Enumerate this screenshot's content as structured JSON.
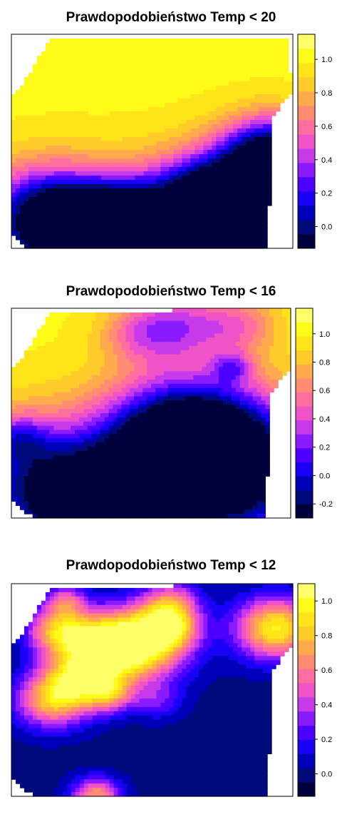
{
  "colors": {
    "palette": [
      "#00003d",
      "#000a7a",
      "#0000b8",
      "#1a00f5",
      "#4d00ff",
      "#8a1aff",
      "#c73aea",
      "#f053c8",
      "#ff6e9e",
      "#ff8c73",
      "#ffab4d",
      "#ffcb2a",
      "#ffe41a",
      "#fffb18",
      "#ffff6a"
    ],
    "outside": "#ffffff"
  },
  "chart_data": [
    {
      "type": "heatmap",
      "title": "Prawdopodobieństwo Temp < 20",
      "colorbar": {
        "range": [
          -0.13,
          1.15
        ],
        "ticks": [
          {
            "value": 0.0,
            "label": "0.0"
          },
          {
            "value": 0.2,
            "label": "0.2"
          },
          {
            "value": 0.4,
            "label": "0.4"
          },
          {
            "value": 0.6,
            "label": "0.6"
          },
          {
            "value": 0.8,
            "label": "0.8"
          },
          {
            "value": 1.0,
            "label": "1.0"
          }
        ]
      },
      "base_value": 1.0,
      "region": [
        [
          0.14,
          0.02
        ],
        [
          0.98,
          0.01
        ],
        [
          1.0,
          0.27
        ],
        [
          0.93,
          0.38
        ],
        [
          0.91,
          1.0
        ],
        [
          0.05,
          1.0
        ],
        [
          0.0,
          0.93
        ],
        [
          0.0,
          0.3
        ],
        [
          0.06,
          0.19
        ]
      ],
      "blobs": [
        {
          "x": 0.13,
          "y": 0.86,
          "r": 0.17,
          "v": -1.15
        },
        {
          "x": 0.24,
          "y": 0.91,
          "r": 0.1,
          "v": -0.9
        },
        {
          "x": 0.55,
          "y": 1.02,
          "r": 0.22,
          "v": -1.25
        },
        {
          "x": 0.85,
          "y": 0.88,
          "r": 0.2,
          "v": -1.25
        },
        {
          "x": 0.92,
          "y": 0.55,
          "r": 0.12,
          "v": -1.0
        },
        {
          "x": 0.7,
          "y": 0.72,
          "r": 0.12,
          "v": -0.45
        },
        {
          "x": 0.4,
          "y": 0.8,
          "r": 0.1,
          "v": -0.35
        }
      ]
    },
    {
      "type": "heatmap",
      "title": "Prawdopodobieństwo Temp < 16",
      "colorbar": {
        "range": [
          -0.3,
          1.18
        ],
        "ticks": [
          {
            "value": -0.2,
            "label": "-0.2"
          },
          {
            "value": 0.0,
            "label": "0.0"
          },
          {
            "value": 0.2,
            "label": "0.2"
          },
          {
            "value": 0.4,
            "label": "0.4"
          },
          {
            "value": 0.6,
            "label": "0.6"
          },
          {
            "value": 0.8,
            "label": "0.8"
          },
          {
            "value": 1.0,
            "label": "1.0"
          }
        ]
      },
      "base_value": 1.0,
      "region": [
        [
          0.14,
          0.02
        ],
        [
          1.0,
          0.0
        ],
        [
          1.0,
          0.28
        ],
        [
          0.93,
          0.4
        ],
        [
          0.91,
          1.0
        ],
        [
          0.08,
          1.0
        ],
        [
          0.0,
          0.92
        ],
        [
          0.0,
          0.3
        ],
        [
          0.06,
          0.19
        ]
      ],
      "blobs": [
        {
          "x": 0.6,
          "y": 0.08,
          "r": 0.12,
          "v": -0.55
        },
        {
          "x": 0.45,
          "y": 0.12,
          "r": 0.1,
          "v": -0.35
        },
        {
          "x": 0.82,
          "y": 0.08,
          "r": 0.1,
          "v": -0.4
        },
        {
          "x": 0.79,
          "y": 0.28,
          "r": 0.05,
          "v": -0.45
        },
        {
          "x": 0.12,
          "y": 0.85,
          "r": 0.22,
          "v": -1.1
        },
        {
          "x": 0.32,
          "y": 0.95,
          "r": 0.15,
          "v": -0.9
        },
        {
          "x": 0.62,
          "y": 0.62,
          "r": 0.2,
          "v": -1.35
        },
        {
          "x": 0.78,
          "y": 0.8,
          "r": 0.24,
          "v": -1.3
        },
        {
          "x": 0.55,
          "y": 0.82,
          "r": 0.12,
          "v": -0.85
        },
        {
          "x": 0.02,
          "y": 0.62,
          "r": 0.08,
          "v": -0.45
        },
        {
          "x": 0.63,
          "y": 0.85,
          "r": 0.05,
          "v": 0.55
        },
        {
          "x": 0.3,
          "y": 1.02,
          "r": 0.05,
          "v": 0.5
        }
      ]
    },
    {
      "type": "heatmap",
      "title": "Prawdopodobieństwo Temp < 12",
      "colorbar": {
        "range": [
          -0.13,
          1.1
        ],
        "ticks": [
          {
            "value": 0.0,
            "label": "0.0"
          },
          {
            "value": 0.2,
            "label": "0.2"
          },
          {
            "value": 0.4,
            "label": "0.4"
          },
          {
            "value": 0.6,
            "label": "0.6"
          },
          {
            "value": 0.8,
            "label": "0.8"
          },
          {
            "value": 1.0,
            "label": "1.0"
          }
        ]
      },
      "base_value": 0.0,
      "region": [
        [
          0.14,
          0.02
        ],
        [
          1.0,
          0.0
        ],
        [
          1.0,
          0.28
        ],
        [
          0.93,
          0.4
        ],
        [
          0.91,
          1.0
        ],
        [
          0.08,
          1.0
        ],
        [
          0.0,
          0.92
        ],
        [
          0.0,
          0.3
        ],
        [
          0.06,
          0.19
        ]
      ],
      "blobs": [
        {
          "x": 0.46,
          "y": 0.28,
          "r": 0.12,
          "v": 0.95
        },
        {
          "x": 0.33,
          "y": 0.3,
          "r": 0.1,
          "v": 0.8
        },
        {
          "x": 0.17,
          "y": 0.22,
          "r": 0.08,
          "v": 0.75
        },
        {
          "x": 0.24,
          "y": 0.45,
          "r": 0.09,
          "v": 0.75
        },
        {
          "x": 0.14,
          "y": 0.55,
          "r": 0.09,
          "v": 0.7
        },
        {
          "x": 0.56,
          "y": 0.2,
          "r": 0.07,
          "v": 0.7
        },
        {
          "x": 0.57,
          "y": 0.08,
          "r": 0.07,
          "v": 0.45
        },
        {
          "x": 0.35,
          "y": 0.52,
          "r": 0.06,
          "v": 0.5
        },
        {
          "x": 0.19,
          "y": 0.08,
          "r": 0.05,
          "v": 0.45
        },
        {
          "x": 0.94,
          "y": 0.21,
          "r": 0.1,
          "v": 0.95
        },
        {
          "x": 0.3,
          "y": 1.0,
          "r": 0.06,
          "v": 0.7
        },
        {
          "x": 0.52,
          "y": 0.55,
          "r": 0.06,
          "v": 0.25
        }
      ]
    }
  ]
}
